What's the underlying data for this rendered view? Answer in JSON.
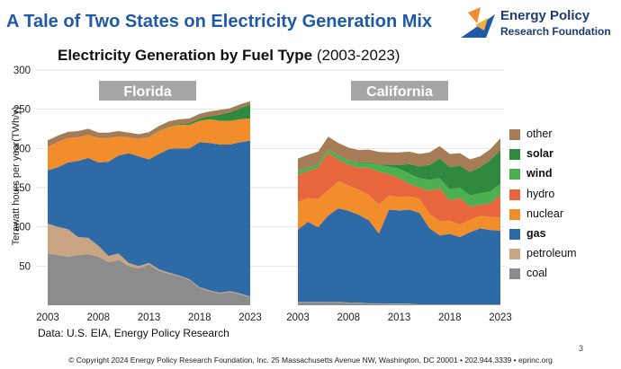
{
  "header": {
    "title": "A Tale of Two States on Electricity Generation Mix",
    "logo_line1": "Energy Policy",
    "logo_line2": "Research Foundation"
  },
  "subtitle": {
    "main": "Electricity Generation by Fuel Type",
    "period": "(2003-2023)"
  },
  "source": "Data: U.S. EIA, Energy Policy Research",
  "footer": "© Copyright 2024 Energy Policy Research Foundation, Inc. 25 Massachusetts Avenue NW, Washington, DC 20001 • 202.944.3339 • eprinc.org",
  "page_number": "3",
  "colors": {
    "coal": "#8c8c8c",
    "petroleum": "#c9a583",
    "gas": "#2e6aa6",
    "nuclear": "#f28d2c",
    "hydro": "#e8663d",
    "wind": "#4caf50",
    "solar": "#2f8a3e",
    "other": "#a57c55",
    "panel_label_bg": "#a6a6a6",
    "gridline": "#d9d9d9"
  },
  "chart_data": {
    "type": "area",
    "stacked": true,
    "title": "Electricity Generation by Fuel Type (2003-2023)",
    "ylabel": "Terawatt hours per year(TWh/y)",
    "ylim": [
      0,
      300
    ],
    "yticks": [
      "50",
      "100",
      "150",
      "200",
      "250",
      "300"
    ],
    "yticks_values": [
      50,
      100,
      150,
      200,
      250,
      300
    ],
    "x": [
      2003,
      2004,
      2005,
      2006,
      2007,
      2008,
      2009,
      2010,
      2011,
      2012,
      2013,
      2014,
      2015,
      2016,
      2017,
      2018,
      2019,
      2020,
      2021,
      2022,
      2023
    ],
    "xtick_labels": [
      "2003",
      "2008",
      "2013",
      "2018",
      "2023"
    ],
    "legend": [
      {
        "key": "other",
        "label": "other",
        "bold": false
      },
      {
        "key": "solar",
        "label": "solar",
        "bold": true
      },
      {
        "key": "wind",
        "label": "wind",
        "bold": true
      },
      {
        "key": "hydro",
        "label": "hydro",
        "bold": false
      },
      {
        "key": "nuclear",
        "label": "nuclear",
        "bold": false
      },
      {
        "key": "gas",
        "label": "gas",
        "bold": true
      },
      {
        "key": "petroleum",
        "label": "petroleum",
        "bold": false
      },
      {
        "key": "coal",
        "label": "coal",
        "bold": false
      }
    ],
    "panels": [
      {
        "name": "Florida",
        "series": [
          {
            "name": "coal",
            "values": [
              66,
              64,
              62,
              64,
              65,
              62,
              55,
              58,
              50,
              47,
              52,
              44,
              40,
              37,
              32,
              22,
              18,
              15,
              17,
              14,
              10
            ]
          },
          {
            "name": "petroleum",
            "values": [
              38,
              36,
              35,
              23,
              21,
              14,
              8,
              8,
              4,
              3,
              2,
              2,
              1.5,
              1,
              1,
              1,
              1,
              1,
              1,
              1,
              1
            ]
          },
          {
            "name": "gas",
            "values": [
              68,
              76,
              85,
              97,
              102,
              106,
              120,
              125,
              140,
              140,
              132,
              147,
              158,
              162,
              167,
              185,
              188,
              189,
              187,
              193,
              199
            ]
          },
          {
            "name": "nuclear",
            "values": [
              30,
              32,
              31,
              30,
              29,
              31,
              30,
              24,
              20,
              22,
              28,
              29,
              28,
              30,
              30,
              27,
              30,
              30,
              30,
              29,
              28
            ]
          },
          {
            "name": "hydro",
            "values": [
              0.2,
              0.2,
              0.2,
              0.2,
              0.2,
              0.2,
              0.2,
              0.2,
              0.2,
              0.2,
              0.2,
              0.2,
              0.2,
              0.2,
              0.2,
              0.2,
              0.2,
              0.2,
              0.2,
              0.2,
              0.2
            ]
          },
          {
            "name": "wind",
            "values": [
              0,
              0,
              0,
              0,
              0,
              0,
              0,
              0,
              0,
              0,
              0,
              0,
              0,
              0,
              0,
              0,
              0,
              0,
              0,
              0,
              0
            ]
          },
          {
            "name": "solar",
            "values": [
              0,
              0,
              0,
              0,
              0,
              0,
              0,
              0,
              0,
              0,
              0.5,
              0.5,
              1,
              1,
              2,
              3,
              4,
              8,
              11,
              14,
              18
            ]
          },
          {
            "name": "other",
            "values": [
              8,
              8,
              8,
              8,
              8,
              7,
              7,
              7,
              6,
              6,
              6,
              6,
              6,
              6,
              6,
              6,
              6,
              6,
              5,
              5,
              4
            ]
          }
        ]
      },
      {
        "name": "California",
        "series": [
          {
            "name": "coal",
            "values": [
              4,
              4,
              4,
              4,
              4,
              3,
              3,
              2,
              2,
              1.5,
              1.5,
              1.5,
              0.5,
              0.5,
              0.5,
              0.5,
              0.5,
              0.5,
              0.5,
              0.5,
              0.5
            ]
          },
          {
            "name": "petroleum",
            "values": [
              0.5,
              0.5,
              0.5,
              0.5,
              0.5,
              0.5,
              0.5,
              0.5,
              0.5,
              0.5,
              0.5,
              0.5,
              0.5,
              0.5,
              0.5,
              0.5,
              0.5,
              0.5,
              0.5,
              0.5,
              0.5
            ]
          },
          {
            "name": "gas",
            "values": [
              92,
              102,
              95,
              110,
              119,
              117,
              112,
              106,
              89,
              120,
              119,
              120,
              117,
              97,
              88,
              90,
              86,
              92,
              97,
              95,
              94
            ]
          },
          {
            "name": "nuclear",
            "values": [
              35,
              30,
              36,
              32,
              35,
              32,
              32,
              32,
              37,
              18,
              17,
              17,
              18,
              19,
              18,
              17,
              16,
              16,
              16,
              17,
              17
            ]
          },
          {
            "name": "hydro",
            "values": [
              35,
              35,
              40,
              48,
              27,
              27,
              28,
              35,
              42,
              27,
              24,
              16,
              14,
              29,
              42,
              26,
              34,
              17,
              14,
              17,
              29
            ]
          },
          {
            "name": "wind",
            "values": [
              4,
              4,
              4,
              4,
              5,
              5,
              6,
              6,
              8,
              10,
              12,
              13,
              12,
              14,
              13,
              14,
              13,
              14,
              15,
              15,
              14
            ]
          },
          {
            "name": "solar",
            "values": [
              0.5,
              0.5,
              0.5,
              0.5,
              0.5,
              0.5,
              0.5,
              1,
              1,
              2,
              5,
              12,
              15,
              19,
              25,
              28,
              28,
              30,
              33,
              40,
              43
            ]
          },
          {
            "name": "other",
            "values": [
              16,
              16,
              16,
              16,
              16,
              16,
              16,
              16,
              16,
              16,
              16,
              16,
              16,
              16,
              16,
              17,
              16,
              16,
              14,
              14,
              15
            ]
          }
        ]
      }
    ]
  }
}
